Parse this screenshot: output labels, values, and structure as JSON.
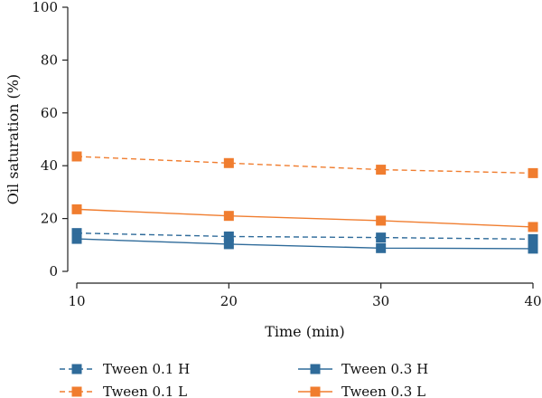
{
  "chart_data": {
    "type": "line",
    "xlabel": "Time (min)",
    "ylabel": "Oil saturation (%)",
    "xlim": [
      10,
      40
    ],
    "ylim": [
      0,
      100
    ],
    "xticks": [
      "10",
      "20",
      "30",
      "40"
    ],
    "yticks": [
      "0",
      "20",
      "40",
      "60",
      "80",
      "100"
    ],
    "grid": false,
    "legend_position": "bottom",
    "x": [
      10,
      20,
      30,
      40
    ],
    "series": [
      {
        "name": "Tween 0.1 H",
        "values": [
          14.5,
          13.2,
          12.8,
          12.2
        ],
        "color": "#2f6b9a",
        "dash": "dashed",
        "marker": "square"
      },
      {
        "name": "Tween 0.3 H",
        "values": [
          12.3,
          10.3,
          8.8,
          8.6
        ],
        "color": "#2f6b9a",
        "dash": "solid",
        "marker": "square"
      },
      {
        "name": "Tween 0.1 L",
        "values": [
          43.5,
          41.0,
          38.5,
          37.2
        ],
        "color": "#f07d2f",
        "dash": "dashed",
        "marker": "square"
      },
      {
        "name": "Tween 0.3 L",
        "values": [
          23.5,
          21.0,
          19.2,
          16.8
        ],
        "color": "#f07d2f",
        "dash": "solid",
        "marker": "square"
      }
    ]
  }
}
